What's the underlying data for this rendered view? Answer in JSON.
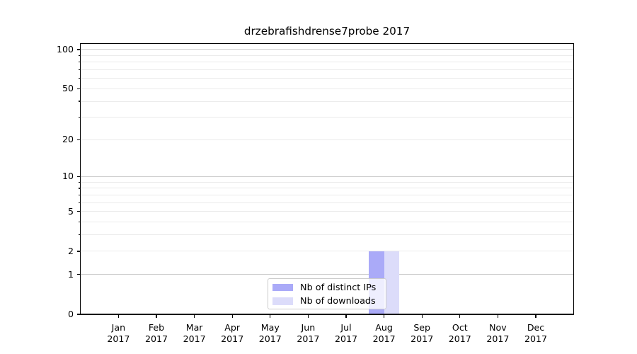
{
  "chart_data": {
    "type": "bar",
    "title": "drzebrafishdrense7probe 2017",
    "xlabel": "",
    "ylabel": "",
    "categories": [
      "Jan 2017",
      "Feb 2017",
      "Mar 2017",
      "Apr 2017",
      "May 2017",
      "Jun 2017",
      "Jul 2017",
      "Aug 2017",
      "Sep 2017",
      "Oct 2017",
      "Nov 2017",
      "Dec 2017"
    ],
    "series": [
      {
        "name": "Nb of distinct IPs",
        "color": "#aaaaf8",
        "values": [
          0,
          0,
          0,
          0,
          0,
          0,
          0,
          2,
          0,
          0,
          0,
          0
        ]
      },
      {
        "name": "Nb of downloads",
        "color": "#dcdcfa",
        "values": [
          0,
          0,
          0,
          0,
          0,
          0,
          0,
          2,
          0,
          0,
          0,
          0
        ]
      }
    ],
    "yscale": "log1p",
    "ylim": [
      0,
      112
    ],
    "ytick_values": [
      0,
      1,
      2,
      5,
      10,
      20,
      50,
      100
    ],
    "major_grid_ticks": [
      1,
      10,
      100
    ],
    "minor_grid_ticks": [
      3,
      4,
      6,
      7,
      8,
      9,
      30,
      40,
      60,
      70,
      80,
      90
    ],
    "grid": true,
    "legend_position": "lower center",
    "colors": {
      "grid_major": "#cccccc",
      "grid_minor": "#ebebeb",
      "spine": "#000000",
      "legend_border": "#cccccc",
      "background": "#ffffff"
    }
  }
}
